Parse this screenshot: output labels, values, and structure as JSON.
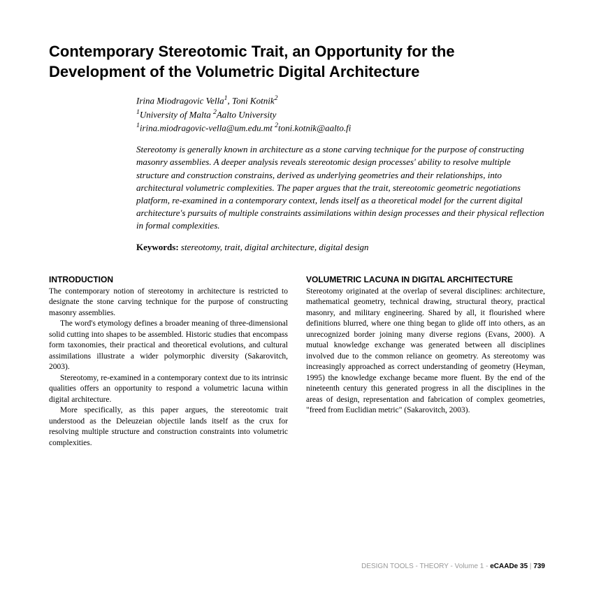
{
  "title": "Contemporary Stereotomic Trait, an Opportunity for the Development of the Volumetric Digital Architecture",
  "authors_html": "Irina Miodragovic Vella<sup>1</sup>, Toni Kotnik<sup>2</sup>",
  "affiliations_html": "<sup>1</sup>University of Malta <sup>2</sup>Aalto University",
  "emails_html": "<sup>1</sup>irina.miodragovic-vella@um.edu.mt <sup>2</sup>toni.kotnik@aalto.fi",
  "abstract": "Stereotomy is generally known in architecture as a stone carving technique for the purpose of constructing masonry assemblies. A deeper analysis reveals stereotomic design processes' ability to resolve multiple structure and construction constrains, derived as underlying geometries and their relationships, into architectural volumetric complexities. The paper argues that the trait, stereotomic geometric negotiations platform, re-examined in a contemporary context, lends itself as a theoretical model for the current digital architecture's pursuits of multiple constraints assimilations within design processes and their physical reflection in formal complexities.",
  "keywords_label": "Keywords:",
  "keywords_values": "stereotomy, trait, digital architecture, digital design",
  "left": {
    "head": "INTRODUCTION",
    "p1": "The contemporary notion of stereotomy in architecture is restricted to designate the stone carving technique for the purpose of constructing masonry assemblies.",
    "p2": "The word's etymology defines a broader meaning of three-dimensional solid cutting into shapes to be assembled. Historic studies that encompass form taxonomies, their practical and theoretical evolutions, and cultural assimilations illustrate a wider polymorphic diversity (Sakarovitch, 2003).",
    "p3": "Stereotomy, re-examined in a contemporary context due to its intrinsic qualities offers an opportunity to respond a volumetric lacuna within digital architecture.",
    "p4": "More specifically, as this paper argues, the stereotomic trait understood as the Deleuzeian objectile lands itself as the crux for resolving multiple structure and construction constraints into volumetric complexities."
  },
  "right": {
    "head": "VOLUMETRIC LACUNA IN DIGITAL ARCHITECTURE",
    "p1": "Stereotomy originated at the overlap of several disciplines: architecture, mathematical geometry, technical drawing, structural theory, practical masonry, and military engineering. Shared by all, it flourished where definitions blurred, where one thing began to glide off into others, as an unrecognized border joining many diverse regions (Evans, 2000). A mutual knowledge exchange was generated between all disciplines involved due to the common reliance on geometry. As stereotomy was increasingly approached as correct understanding of geometry (Heyman, 1995) the knowledge exchange became more fluent. By the end of the nineteenth century this generated progress in all the disciplines in the areas of design, representation and fabrication of complex geometries, \"freed from Euclidian metric\" (Sakarovitch, 2003)."
  },
  "footer": {
    "section": "DESIGN TOOLS - THEORY - Volume 1 - ",
    "conf": "eCAADe 35",
    "sep": " | ",
    "page": "739"
  }
}
